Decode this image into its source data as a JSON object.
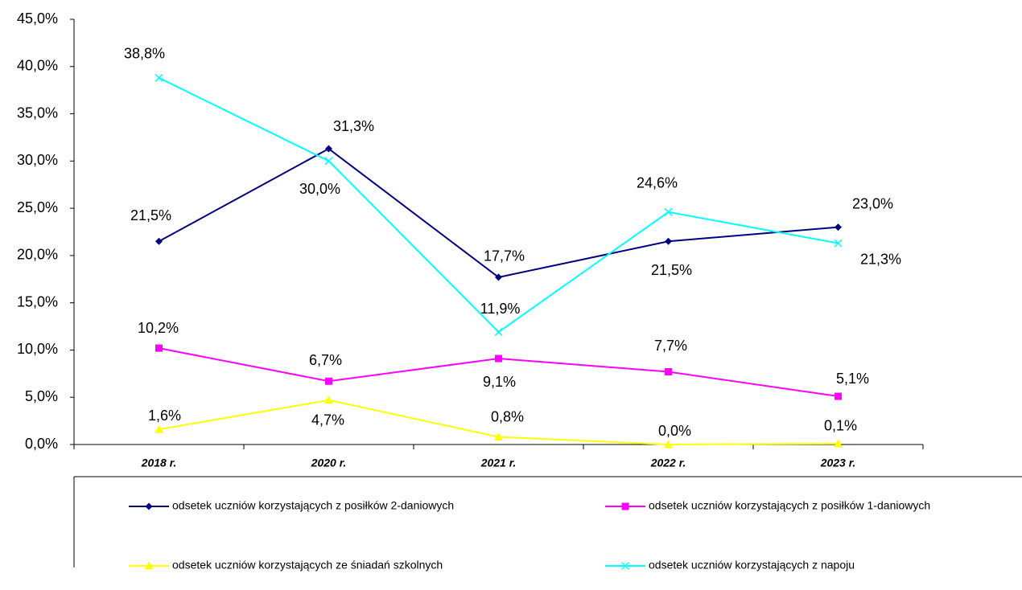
{
  "chart_data": {
    "type": "line",
    "categories": [
      "2018 r.",
      "2020 r.",
      "2021 r.",
      "2022 r.",
      "2023 r."
    ],
    "ylim": [
      0,
      45
    ],
    "yticks": [
      {
        "value": 0,
        "label": "0,0%"
      },
      {
        "value": 5,
        "label": "5,0%"
      },
      {
        "value": 10,
        "label": "10,0%"
      },
      {
        "value": 15,
        "label": "15,0%"
      },
      {
        "value": 20,
        "label": "20,0%"
      },
      {
        "value": 25,
        "label": "25,0%"
      },
      {
        "value": 30,
        "label": "30,0%"
      },
      {
        "value": 35,
        "label": "35,0%"
      },
      {
        "value": 40,
        "label": "40,0%"
      },
      {
        "value": 45,
        "label": "45,0%"
      }
    ],
    "series": [
      {
        "name": "odsetek uczniów korzystających z posiłków 2-daniowych",
        "color": "#000080",
        "marker": "diamond",
        "values": [
          21.5,
          31.3,
          17.7,
          21.5,
          23.0
        ],
        "value_labels": [
          "21,5%",
          "31,3%",
          "17,7%",
          "21,5%",
          "23,0%"
        ]
      },
      {
        "name": "odsetek uczniów korzystających z posiłków 1-daniowych",
        "color": "#FF00FF",
        "marker": "square",
        "values": [
          10.2,
          6.7,
          9.1,
          7.7,
          5.1
        ],
        "value_labels": [
          "10,2%",
          "6,7%",
          "9,1%",
          "7,7%",
          "5,1%"
        ]
      },
      {
        "name": "odsetek uczniów korzystających ze śniadań szkolnych",
        "color": "#FFFF00",
        "marker": "triangle",
        "values": [
          1.6,
          4.7,
          0.8,
          0.0,
          0.1
        ],
        "value_labels": [
          "1,6%",
          "4,7%",
          "0,8%",
          "0,0%",
          "0,1%"
        ]
      },
      {
        "name": "odsetek uczniów korzystających z napoju",
        "color": "#00FFFF",
        "marker": "x",
        "values": [
          38.8,
          30.0,
          11.9,
          24.6,
          21.3
        ],
        "value_labels": [
          "38,8%",
          "30,0%",
          "11,9%",
          "24,6%",
          "21,3%"
        ]
      }
    ]
  }
}
